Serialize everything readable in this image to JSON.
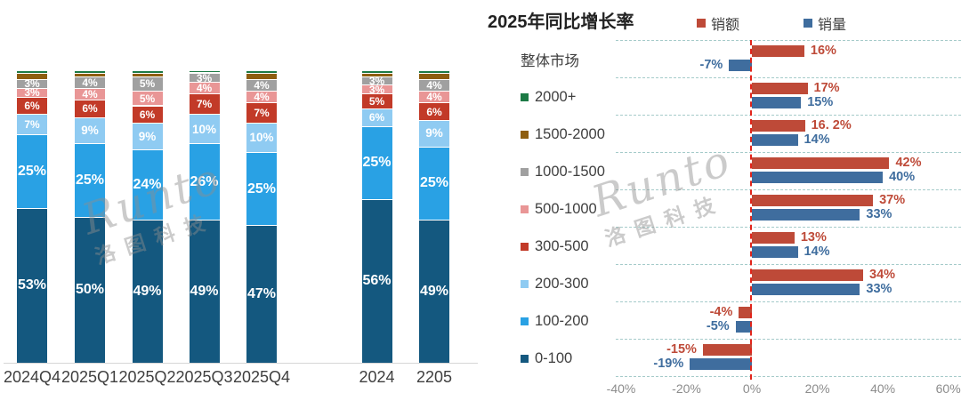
{
  "watermark": {
    "brand": "Runto",
    "cn": "洛图科技"
  },
  "right_title": "2025年同比增长率",
  "legend": [
    {
      "label": "销额",
      "color": "#be4a38"
    },
    {
      "label": "销量",
      "color": "#3f6d9e"
    }
  ],
  "chart_data": [
    {
      "type": "bar",
      "subtype": "stacked-vertical",
      "title": "",
      "unit": "%",
      "ylim": [
        0,
        100
      ],
      "categories": [
        "2024Q4",
        "2025Q1",
        "2025Q2",
        "2025Q3",
        "2025Q4",
        "2024",
        "2205"
      ],
      "series": [
        {
          "name": "0-100",
          "color": "#14587f",
          "values": [
            53,
            50,
            49,
            49,
            47,
            56,
            49
          ],
          "labels": [
            "53%",
            "50%",
            "49%",
            "49%",
            "47%",
            "56%",
            "49%"
          ]
        },
        {
          "name": "100-200",
          "color": "#29a1e4",
          "values": [
            25,
            25,
            24,
            26,
            25,
            25,
            25
          ],
          "labels": [
            "25%",
            "25%",
            "24%",
            "26%",
            "25%",
            "25%",
            "25%"
          ]
        },
        {
          "name": "200-300",
          "color": "#8fcbf2",
          "values": [
            7,
            9,
            9,
            10,
            10,
            6,
            9
          ],
          "labels": [
            "7%",
            "9%",
            "9%",
            "10%",
            "10%",
            "6%",
            "9%"
          ]
        },
        {
          "name": "300-500",
          "color": "#c23a28",
          "values": [
            6,
            6,
            6,
            7,
            7,
            5,
            6
          ],
          "labels": [
            "6%",
            "6%",
            "6%",
            "7%",
            "7%",
            "5%",
            "6%"
          ]
        },
        {
          "name": "500-1000",
          "color": "#e99696",
          "values": [
            3,
            4,
            5,
            4,
            4,
            3,
            4
          ],
          "labels": [
            "3%",
            "4%",
            "5%",
            "4%",
            "4%",
            "3%",
            "4%"
          ]
        },
        {
          "name": "1000-1500",
          "color": "#a0a0a0",
          "values": [
            3,
            4,
            5,
            3,
            4,
            3,
            4
          ],
          "labels": [
            "3%",
            "4%",
            "5%",
            "3%",
            "4%",
            "3%",
            "4%"
          ]
        },
        {
          "name": "1500-2000",
          "color": "#8e5e10",
          "values": [
            2,
            1,
            1,
            0.5,
            2,
            1,
            2
          ],
          "labels": null
        },
        {
          "name": "2000+",
          "color": "#1c7a45",
          "values": [
            1,
            1,
            1,
            0.5,
            1,
            1,
            1
          ],
          "labels": null
        }
      ]
    },
    {
      "type": "bar",
      "subtype": "grouped-horizontal",
      "title": "2025年同比增长率",
      "legend_position": "top",
      "grid": "dashed-row-separators",
      "xlim": [
        -40,
        62
      ],
      "axis_ticks": [
        {
          "v": -40,
          "label": "-40%"
        },
        {
          "v": -20,
          "label": "-20%"
        },
        {
          "v": 0,
          "label": "0%"
        },
        {
          "v": 20,
          "label": "20%"
        },
        {
          "v": 40,
          "label": "40%"
        },
        {
          "v": 60,
          "label": "60%"
        }
      ],
      "categories": [
        {
          "label": "整体市场",
          "swatch": null
        },
        {
          "label": "2000+",
          "swatch": "#1c7a45"
        },
        {
          "label": "1500-2000",
          "swatch": "#8e5e10"
        },
        {
          "label": "1000-1500",
          "swatch": "#a0a0a0"
        },
        {
          "label": "500-1000",
          "swatch": "#e99696"
        },
        {
          "label": "300-500",
          "swatch": "#c23a28"
        },
        {
          "label": "200-300",
          "swatch": "#8fcbf2"
        },
        {
          "label": "100-200",
          "swatch": "#29a1e4"
        },
        {
          "label": "0-100",
          "swatch": "#14587f"
        }
      ],
      "series": [
        {
          "name": "销额",
          "color": "#be4a38",
          "values": [
            16,
            17,
            16.2,
            42,
            37,
            13,
            34,
            -4,
            -15
          ],
          "labels": [
            "16%",
            "17%",
            "16. 2%",
            "42%",
            "37%",
            "13%",
            "34%",
            "-4%",
            "-15%"
          ]
        },
        {
          "name": "销量",
          "color": "#3f6d9e",
          "values": [
            -7,
            15,
            14,
            40,
            33,
            14,
            33,
            -5,
            -19
          ],
          "labels": [
            "-7%",
            "15%",
            "14%",
            "40%",
            "33%",
            "14%",
            "33%",
            "-5%",
            "-19%"
          ]
        }
      ]
    }
  ]
}
